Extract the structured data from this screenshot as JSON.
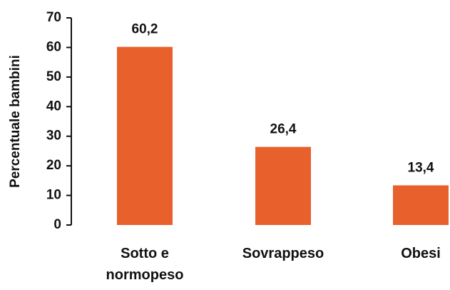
{
  "chart_data": {
    "type": "bar",
    "ylabel": "Percentuale bambini",
    "categories": [
      "Sotto e normopeso",
      "Sovrappeso",
      "Obesi"
    ],
    "values": [
      60.2,
      26.4,
      13.4
    ],
    "value_labels": [
      "60,2",
      "26,4",
      "13,4"
    ],
    "color": "#e8602c",
    "ylim": [
      0,
      70
    ],
    "yticks": [
      0,
      10,
      20,
      30,
      40,
      50,
      60,
      70
    ],
    "grid": false
  }
}
